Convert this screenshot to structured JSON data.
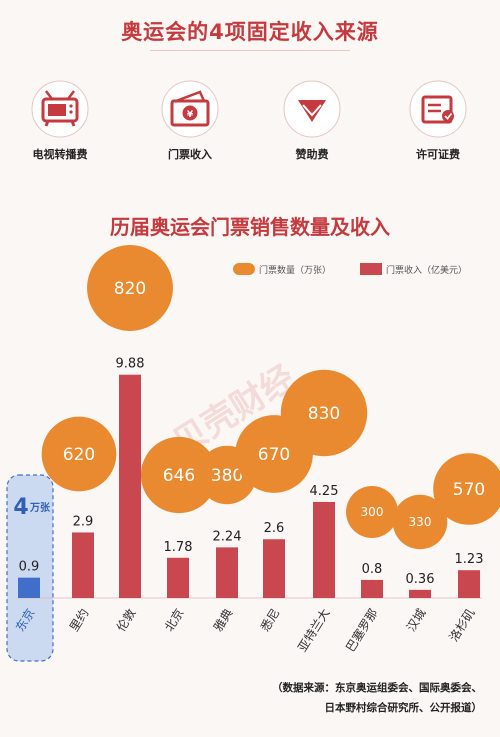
{
  "header": {
    "title": "奥运会的4项固定收入来源"
  },
  "revenue_sources": [
    {
      "label": "电视转播费",
      "icon": "tv-icon"
    },
    {
      "label": "门票收入",
      "icon": "ticket-icon"
    },
    {
      "label": "赞助费",
      "icon": "gem-icon"
    },
    {
      "label": "许可证费",
      "icon": "license-icon"
    }
  ],
  "watermark": "贝壳财经",
  "colors": {
    "accent_red": "#c43a3e",
    "bar_red": "#c9484f",
    "bubble_orange": "#e98a30",
    "tokyo_blue": "#3f6fc9",
    "tokyo_panel": "#bcd0f0"
  },
  "chart_data": {
    "type": "bar",
    "title": "历届奥运会门票销售数量及收入",
    "categories": [
      "东京",
      "里约",
      "伦敦",
      "北京",
      "雅典",
      "悉尼",
      "亚特兰大",
      "巴塞罗那",
      "汉城",
      "洛杉矶"
    ],
    "series": [
      {
        "name": "门票收入（亿美元）",
        "values": [
          0.9,
          2.9,
          9.88,
          1.78,
          2.24,
          2.6,
          4.25,
          0.8,
          0.36,
          1.23
        ],
        "mark": "bar"
      },
      {
        "name": "门票数量（万张）",
        "values": [
          4,
          620,
          820,
          646,
          380,
          670,
          830,
          300,
          330,
          570
        ],
        "mark": "bubble"
      }
    ],
    "value_labels": [
      "0.9",
      "2.9",
      "9.88",
      "1.78",
      "2.24",
      "2.6",
      "4.25",
      "0.8",
      "0.36",
      "1.23"
    ],
    "tokyo_count_label": {
      "number": "4",
      "unit": "万张"
    },
    "grid": false,
    "legend_position": "top-right"
  },
  "footer": {
    "source_line1": "（数据来源：东京奥运组委会、国际奥委会、",
    "source_line2": "日本野村综合研究所、公开报道）"
  }
}
